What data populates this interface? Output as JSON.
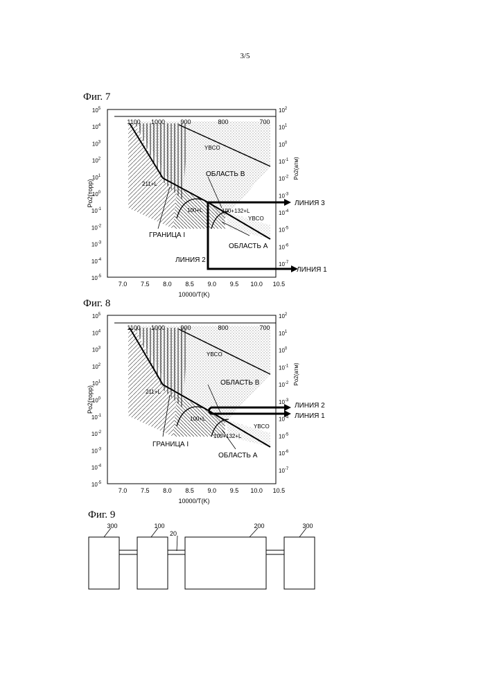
{
  "page_number": "3/5",
  "figures": [
    {
      "id": "fig7",
      "title": "Фиг. 7",
      "y_left_label": "Po2(торр)",
      "y_right_label": "Po2(атм)",
      "x_label": "10000/T(K)",
      "x_ticks": [
        "7.0",
        "7.5",
        "8.0",
        "8.5",
        "9.0",
        "9.5",
        "10.0",
        "10.5"
      ],
      "top_ticks": [
        "1100",
        "1000",
        "900",
        "800",
        "700"
      ],
      "y_left_ticks": [
        "10^5",
        "10^4",
        "10^3",
        "10^2",
        "10^1",
        "10^0",
        "10^-1",
        "10^-2",
        "10^-3",
        "10^-4",
        "10^-5"
      ],
      "y_right_ticks": [
        "10^2",
        "10^1",
        "10^0",
        "10^-1",
        "10^-2",
        "10^-3",
        "10^-4",
        "10^-5",
        "10^-6",
        "10^-7"
      ],
      "regions": [
        "YBCO",
        "YBCO",
        "211+L",
        "100+L",
        "100+132+L"
      ],
      "labels": {
        "region_b": "ОБЛАСТЬ В",
        "region_a": "ОБЛАСТЬ А",
        "boundary": "ГРАНИЦА I",
        "line1": "ЛИНИЯ 1",
        "line2": "ЛИНИЯ 2",
        "line3": "ЛИНИЯ 3"
      }
    },
    {
      "id": "fig8",
      "title": "Фиг. 8",
      "y_left_label": "Po2(торр)",
      "y_right_label": "Po2(атм)",
      "x_label": "10000/T(K)",
      "x_ticks": [
        "7.0",
        "7.5",
        "8.0",
        "8.5",
        "9.0",
        "9.5",
        "10.0",
        "10.5"
      ],
      "top_ticks": [
        "1100",
        "1000",
        "900",
        "800",
        "700"
      ],
      "y_left_ticks": [
        "10^5",
        "10^4",
        "10^3",
        "10^2",
        "10^1",
        "10^0",
        "10^-1",
        "10^-2",
        "10^-3",
        "10^-4",
        "10^-5"
      ],
      "y_right_ticks": [
        "10^2",
        "10^1",
        "10^0",
        "10^-1",
        "10^-2",
        "10^-3",
        "10^-4",
        "10^-5",
        "10^-6",
        "10^-7"
      ],
      "regions": [
        "YBCO",
        "YBCO",
        "211+L",
        "100+L",
        "100+132+L"
      ],
      "labels": {
        "region_b": "ОБЛАСТЬ В",
        "region_a": "ОБЛАСТЬ А",
        "boundary": "ГРАНИЦА I",
        "line1": "ЛИНИЯ 1",
        "line2": "ЛИНИЯ 2"
      }
    },
    {
      "id": "fig9",
      "title": "Фиг. 9",
      "parts": [
        "300",
        "100",
        "20",
        "200",
        "300"
      ]
    }
  ]
}
